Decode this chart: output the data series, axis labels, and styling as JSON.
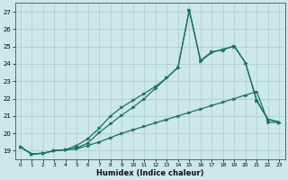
{
  "xlabel": "Humidex (Indice chaleur)",
  "background_color": "#cce8e8",
  "grid_color": "#aacccc",
  "line_color": "#1a7060",
  "xlim_min": -0.5,
  "xlim_max": 23.5,
  "ylim_min": 18.5,
  "ylim_max": 27.5,
  "ytick_values": [
    19,
    20,
    21,
    22,
    23,
    24,
    25,
    26,
    27
  ],
  "xtick_values": [
    0,
    1,
    2,
    3,
    4,
    5,
    6,
    7,
    8,
    9,
    10,
    11,
    12,
    13,
    14,
    15,
    16,
    17,
    18,
    19,
    20,
    21,
    22,
    23
  ],
  "series1_x": [
    0,
    1,
    2,
    3,
    4,
    5,
    6,
    7,
    8,
    9,
    10,
    11,
    12,
    13,
    14,
    15,
    16,
    17,
    18,
    19,
    20,
    21,
    22,
    23
  ],
  "series1_y": [
    19.2,
    18.8,
    18.85,
    19.0,
    19.05,
    19.1,
    19.3,
    19.5,
    19.75,
    20.0,
    20.2,
    20.4,
    20.6,
    20.8,
    21.0,
    21.2,
    21.4,
    21.6,
    21.8,
    22.0,
    22.2,
    22.4,
    20.65,
    20.6
  ],
  "series2_x": [
    0,
    1,
    2,
    3,
    4,
    5,
    6,
    7,
    8,
    9,
    10,
    11,
    12,
    13,
    14,
    15,
    16,
    17,
    18,
    19,
    20,
    21,
    22,
    23
  ],
  "series2_y": [
    19.2,
    18.8,
    18.85,
    19.0,
    19.05,
    19.3,
    19.7,
    20.3,
    21.0,
    21.5,
    21.9,
    22.3,
    22.7,
    23.2,
    23.8,
    27.1,
    24.15,
    24.65,
    24.85,
    25.0,
    24.05,
    21.85,
    20.8,
    20.65
  ],
  "series3_x": [
    0,
    1,
    2,
    3,
    4,
    5,
    6,
    7,
    8,
    9,
    10,
    11,
    12,
    13,
    14,
    15,
    16,
    17,
    18,
    19,
    20,
    21,
    22,
    23
  ],
  "series3_y": [
    19.2,
    18.8,
    18.85,
    19.0,
    19.05,
    19.15,
    19.45,
    20.05,
    20.55,
    21.05,
    21.5,
    22.0,
    22.6,
    23.2,
    23.8,
    27.1,
    24.2,
    24.7,
    24.8,
    25.05,
    24.05,
    21.9,
    20.8,
    20.65
  ]
}
